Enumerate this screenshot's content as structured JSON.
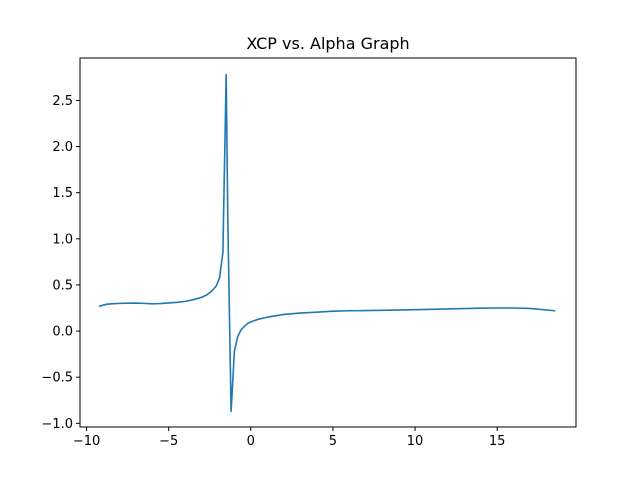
{
  "chart_data": {
    "type": "line",
    "title": "XCP vs. Alpha Graph",
    "xlabel": "",
    "ylabel": "",
    "xlim": [
      -10.4,
      19.8
    ],
    "ylim": [
      -1.04,
      2.96
    ],
    "xticks": [
      -10,
      -5,
      0,
      5,
      10,
      15
    ],
    "xtick_labels": [
      "−10",
      "−5",
      "0",
      "5",
      "10",
      "15"
    ],
    "yticks": [
      -1.0,
      -0.5,
      0.0,
      0.5,
      1.0,
      1.5,
      2.0,
      2.5
    ],
    "ytick_labels": [
      "−1.0",
      "−0.5",
      "0.0",
      "0.5",
      "1.0",
      "1.5",
      "2.0",
      "2.5"
    ],
    "grid": false,
    "series": [
      {
        "color": "#1f77b4",
        "x": [
          -9.2,
          -8.8,
          -8.5,
          -8.0,
          -7.5,
          -7.0,
          -6.5,
          -6.0,
          -5.5,
          -5.0,
          -4.5,
          -4.0,
          -3.5,
          -3.0,
          -2.7,
          -2.4,
          -2.1,
          -1.9,
          -1.7,
          -1.5,
          -1.4,
          -1.2,
          -1.0,
          -0.8,
          -0.6,
          -0.4,
          -0.2,
          0.0,
          0.5,
          1.0,
          1.5,
          2.0,
          3.0,
          4.0,
          5.0,
          6.0,
          7.0,
          8.0,
          10.0,
          12.0,
          14.0,
          15.0,
          16.0,
          17.0,
          18.5
        ],
        "y": [
          0.27,
          0.29,
          0.295,
          0.3,
          0.302,
          0.303,
          0.3,
          0.295,
          0.298,
          0.305,
          0.312,
          0.322,
          0.34,
          0.365,
          0.39,
          0.43,
          0.49,
          0.58,
          0.85,
          2.78,
          1.2,
          -0.87,
          -0.22,
          -0.06,
          0.01,
          0.05,
          0.08,
          0.1,
          0.13,
          0.15,
          0.165,
          0.18,
          0.195,
          0.205,
          0.215,
          0.22,
          0.222,
          0.225,
          0.232,
          0.24,
          0.248,
          0.25,
          0.25,
          0.245,
          0.22
        ]
      }
    ]
  }
}
